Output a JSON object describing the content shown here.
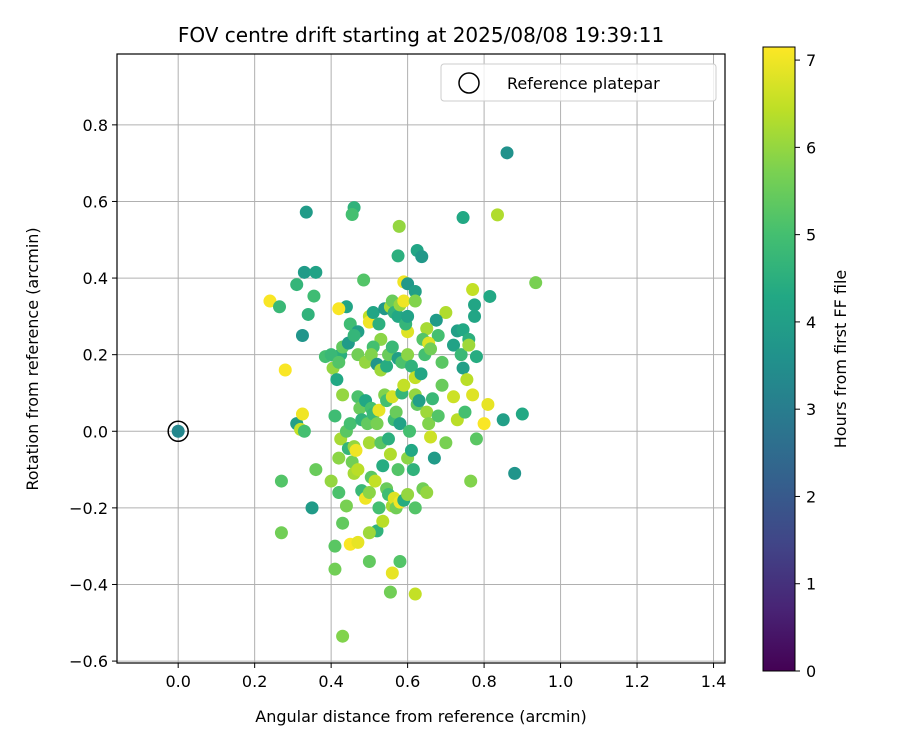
{
  "chart_data": {
    "type": "scatter",
    "title": "FOV centre drift starting at 2025/08/08 19:39:11",
    "xlabel": "Angular distance from reference (arcmin)",
    "ylabel": "Rotation from reference (arcmin)",
    "xlim": [
      -0.16,
      1.43
    ],
    "ylim": [
      -0.605,
      0.985
    ],
    "xticks": [
      "0.0",
      "0.2",
      "0.4",
      "0.6",
      "0.8",
      "1.0",
      "1.2",
      "1.4"
    ],
    "xtick_values": [
      0.0,
      0.2,
      0.4,
      0.6,
      0.8,
      1.0,
      1.2,
      1.4
    ],
    "yticks": [
      "0.8",
      "0.6",
      "0.4",
      "0.2",
      "0.0",
      "−0.2",
      "−0.4",
      "−0.6"
    ],
    "ytick_values": [
      0.8,
      0.6,
      0.4,
      0.2,
      0.0,
      -0.2,
      -0.4,
      -0.6
    ],
    "grid": true,
    "legend": {
      "placement": "top-right",
      "entries": [
        "Reference platepar"
      ]
    },
    "colorbar": {
      "label": "Hours from first FF file",
      "range": [
        0,
        7.15
      ],
      "ticks": [
        "0",
        "1",
        "2",
        "3",
        "4",
        "5",
        "6",
        "7"
      ],
      "tick_values": [
        0,
        1,
        2,
        3,
        4,
        5,
        6,
        7
      ],
      "colormap": "viridis"
    },
    "reference": {
      "x": 0.0,
      "y": 0.0,
      "c": 3.3
    },
    "points": [
      [
        0.0,
        0.0,
        3.3
      ],
      [
        0.86,
        0.727,
        3.6
      ],
      [
        0.335,
        0.572,
        3.9
      ],
      [
        0.46,
        0.584,
        4.6
      ],
      [
        0.455,
        0.566,
        5.0
      ],
      [
        0.745,
        0.558,
        4.3
      ],
      [
        0.835,
        0.565,
        6.3
      ],
      [
        0.935,
        0.388,
        5.7
      ],
      [
        0.578,
        0.535,
        6.0
      ],
      [
        0.575,
        0.458,
        4.5
      ],
      [
        0.625,
        0.472,
        4.2
      ],
      [
        0.637,
        0.456,
        3.8
      ],
      [
        0.59,
        0.39,
        7.0
      ],
      [
        0.77,
        0.37,
        6.5
      ],
      [
        0.33,
        0.415,
        3.9
      ],
      [
        0.36,
        0.415,
        4.1
      ],
      [
        0.485,
        0.395,
        5.2
      ],
      [
        0.31,
        0.383,
        4.7
      ],
      [
        0.24,
        0.34,
        7.1
      ],
      [
        0.265,
        0.325,
        4.8
      ],
      [
        0.355,
        0.353,
        4.9
      ],
      [
        0.34,
        0.305,
        4.6
      ],
      [
        0.325,
        0.25,
        3.7
      ],
      [
        0.44,
        0.325,
        4.2
      ],
      [
        0.42,
        0.32,
        7.1
      ],
      [
        0.6,
        0.385,
        3.8
      ],
      [
        0.62,
        0.365,
        4.0
      ],
      [
        0.775,
        0.33,
        4.2
      ],
      [
        0.815,
        0.352,
        4.3
      ],
      [
        0.7,
        0.31,
        6.3
      ],
      [
        0.675,
        0.29,
        3.9
      ],
      [
        0.775,
        0.3,
        4.2
      ],
      [
        0.73,
        0.262,
        4.0
      ],
      [
        0.745,
        0.265,
        4.3
      ],
      [
        0.76,
        0.24,
        4.5
      ],
      [
        0.68,
        0.25,
        5.0
      ],
      [
        0.65,
        0.268,
        6.2
      ],
      [
        0.6,
        0.26,
        6.8
      ],
      [
        0.45,
        0.28,
        4.9
      ],
      [
        0.47,
        0.26,
        4.0
      ],
      [
        0.5,
        0.3,
        6.5
      ],
      [
        0.5,
        0.285,
        7.0
      ],
      [
        0.51,
        0.31,
        4.2
      ],
      [
        0.525,
        0.28,
        4.5
      ],
      [
        0.53,
        0.24,
        5.9
      ],
      [
        0.54,
        0.32,
        3.8
      ],
      [
        0.555,
        0.325,
        6.2
      ],
      [
        0.56,
        0.34,
        5.5
      ],
      [
        0.565,
        0.31,
        4.6
      ],
      [
        0.575,
        0.3,
        4.3
      ],
      [
        0.58,
        0.33,
        6.0
      ],
      [
        0.59,
        0.34,
        7.0
      ],
      [
        0.595,
        0.28,
        4.7
      ],
      [
        0.6,
        0.3,
        4.1
      ],
      [
        0.62,
        0.34,
        5.8
      ],
      [
        0.64,
        0.24,
        5.2
      ],
      [
        0.425,
        0.2,
        4.5
      ],
      [
        0.43,
        0.22,
        5.4
      ],
      [
        0.445,
        0.23,
        3.9
      ],
      [
        0.46,
        0.25,
        4.7
      ],
      [
        0.47,
        0.2,
        5.6
      ],
      [
        0.49,
        0.18,
        6.0
      ],
      [
        0.51,
        0.22,
        5.0
      ],
      [
        0.505,
        0.2,
        5.8
      ],
      [
        0.52,
        0.175,
        3.7
      ],
      [
        0.53,
        0.16,
        6.1
      ],
      [
        0.545,
        0.17,
        4.4
      ],
      [
        0.55,
        0.2,
        5.5
      ],
      [
        0.56,
        0.22,
        4.8
      ],
      [
        0.575,
        0.19,
        4.0
      ],
      [
        0.585,
        0.18,
        5.1
      ],
      [
        0.6,
        0.2,
        5.9
      ],
      [
        0.61,
        0.17,
        4.6
      ],
      [
        0.62,
        0.14,
        6.5
      ],
      [
        0.635,
        0.15,
        4.2
      ],
      [
        0.645,
        0.2,
        5.0
      ],
      [
        0.655,
        0.23,
        6.8
      ],
      [
        0.66,
        0.215,
        5.6
      ],
      [
        0.69,
        0.18,
        5.3
      ],
      [
        0.72,
        0.225,
        4.1
      ],
      [
        0.74,
        0.2,
        4.8
      ],
      [
        0.745,
        0.165,
        4.0
      ],
      [
        0.755,
        0.135,
        6.4
      ],
      [
        0.76,
        0.225,
        6.1
      ],
      [
        0.78,
        0.195,
        4.4
      ],
      [
        0.385,
        0.195,
        5.0
      ],
      [
        0.4,
        0.2,
        4.8
      ],
      [
        0.405,
        0.165,
        6.0
      ],
      [
        0.415,
        0.135,
        4.3
      ],
      [
        0.42,
        0.18,
        5.2
      ],
      [
        0.36,
        -0.1,
        5.5
      ],
      [
        0.28,
        0.16,
        7.1
      ],
      [
        0.27,
        -0.13,
        5.2
      ],
      [
        0.27,
        -0.265,
        5.6
      ],
      [
        0.35,
        -0.2,
        3.9
      ],
      [
        0.31,
        0.02,
        4.0
      ],
      [
        0.325,
        0.045,
        7.0
      ],
      [
        0.32,
        0.005,
        6.5
      ],
      [
        0.33,
        0.0,
        5.0
      ],
      [
        0.41,
        0.04,
        4.9
      ],
      [
        0.42,
        -0.07,
        5.9
      ],
      [
        0.425,
        -0.02,
        6.2
      ],
      [
        0.43,
        0.095,
        6.0
      ],
      [
        0.44,
        0.0,
        5.3
      ],
      [
        0.445,
        -0.045,
        4.7
      ],
      [
        0.45,
        0.02,
        5.0
      ],
      [
        0.455,
        -0.08,
        5.6
      ],
      [
        0.46,
        -0.04,
        6.0
      ],
      [
        0.465,
        -0.05,
        7.0
      ],
      [
        0.47,
        0.09,
        5.1
      ],
      [
        0.475,
        0.06,
        5.5
      ],
      [
        0.48,
        0.03,
        4.6
      ],
      [
        0.49,
        0.08,
        4.3
      ],
      [
        0.495,
        0.02,
        5.4
      ],
      [
        0.5,
        -0.03,
        6.2
      ],
      [
        0.505,
        0.06,
        5.0
      ],
      [
        0.51,
        0.045,
        4.8
      ],
      [
        0.52,
        0.02,
        5.7
      ],
      [
        0.525,
        0.055,
        6.9
      ],
      [
        0.53,
        -0.03,
        5.3
      ],
      [
        0.535,
        -0.09,
        4.4
      ],
      [
        0.54,
        0.095,
        5.8
      ],
      [
        0.545,
        0.08,
        5.0
      ],
      [
        0.55,
        -0.02,
        4.5
      ],
      [
        0.555,
        -0.06,
        6.3
      ],
      [
        0.56,
        0.09,
        6.7
      ],
      [
        0.565,
        0.03,
        4.9
      ],
      [
        0.57,
        0.05,
        5.5
      ],
      [
        0.575,
        -0.1,
        5.2
      ],
      [
        0.58,
        0.02,
        4.1
      ],
      [
        0.585,
        0.1,
        4.7
      ],
      [
        0.59,
        0.12,
        6.5
      ],
      [
        0.6,
        -0.07,
        5.9
      ],
      [
        0.605,
        0.0,
        5.0
      ],
      [
        0.61,
        -0.05,
        4.3
      ],
      [
        0.615,
        -0.1,
        4.6
      ],
      [
        0.62,
        0.095,
        6.0
      ],
      [
        0.625,
        0.07,
        5.4
      ],
      [
        0.63,
        0.08,
        4.0
      ],
      [
        0.64,
        -0.15,
        5.6
      ],
      [
        0.65,
        0.05,
        6.1
      ],
      [
        0.655,
        0.02,
        5.8
      ],
      [
        0.66,
        -0.015,
        6.6
      ],
      [
        0.665,
        0.085,
        4.8
      ],
      [
        0.67,
        -0.07,
        3.9
      ],
      [
        0.68,
        0.04,
        5.2
      ],
      [
        0.69,
        0.12,
        5.5
      ],
      [
        0.7,
        -0.03,
        5.7
      ],
      [
        0.72,
        0.09,
        6.6
      ],
      [
        0.73,
        0.03,
        6.4
      ],
      [
        0.75,
        0.05,
        5.0
      ],
      [
        0.77,
        0.095,
        6.8
      ],
      [
        0.78,
        -0.02,
        5.3
      ],
      [
        0.8,
        0.02,
        7.1
      ],
      [
        0.81,
        0.07,
        6.9
      ],
      [
        0.85,
        0.03,
        4.0
      ],
      [
        0.9,
        0.045,
        4.3
      ],
      [
        0.88,
        -0.11,
        3.7
      ],
      [
        0.765,
        -0.13,
        5.8
      ],
      [
        0.4,
        -0.13,
        6.0
      ],
      [
        0.42,
        -0.16,
        5.1
      ],
      [
        0.43,
        -0.24,
        5.4
      ],
      [
        0.44,
        -0.195,
        5.7
      ],
      [
        0.46,
        -0.11,
        6.2
      ],
      [
        0.47,
        -0.1,
        6.4
      ],
      [
        0.48,
        -0.155,
        4.8
      ],
      [
        0.49,
        -0.175,
        7.0
      ],
      [
        0.5,
        -0.16,
        5.9
      ],
      [
        0.505,
        -0.12,
        5.3
      ],
      [
        0.515,
        -0.13,
        6.5
      ],
      [
        0.52,
        -0.26,
        4.6
      ],
      [
        0.525,
        -0.2,
        5.0
      ],
      [
        0.535,
        -0.235,
        6.4
      ],
      [
        0.545,
        -0.15,
        5.5
      ],
      [
        0.55,
        -0.165,
        4.9
      ],
      [
        0.56,
        -0.195,
        6.2
      ],
      [
        0.565,
        -0.175,
        6.8
      ],
      [
        0.57,
        -0.2,
        5.6
      ],
      [
        0.58,
        -0.185,
        7.0
      ],
      [
        0.59,
        -0.18,
        4.4
      ],
      [
        0.6,
        -0.165,
        6.0
      ],
      [
        0.62,
        -0.2,
        5.2
      ],
      [
        0.65,
        -0.16,
        6.0
      ],
      [
        0.41,
        -0.3,
        5.3
      ],
      [
        0.45,
        -0.295,
        7.1
      ],
      [
        0.47,
        -0.29,
        6.9
      ],
      [
        0.41,
        -0.36,
        5.6
      ],
      [
        0.5,
        -0.265,
        6.1
      ],
      [
        0.5,
        -0.34,
        5.4
      ],
      [
        0.56,
        -0.37,
        6.9
      ],
      [
        0.555,
        -0.42,
        5.6
      ],
      [
        0.58,
        -0.34,
        5.2
      ],
      [
        0.62,
        -0.425,
        6.5
      ],
      [
        0.43,
        -0.535,
        5.8
      ]
    ]
  }
}
